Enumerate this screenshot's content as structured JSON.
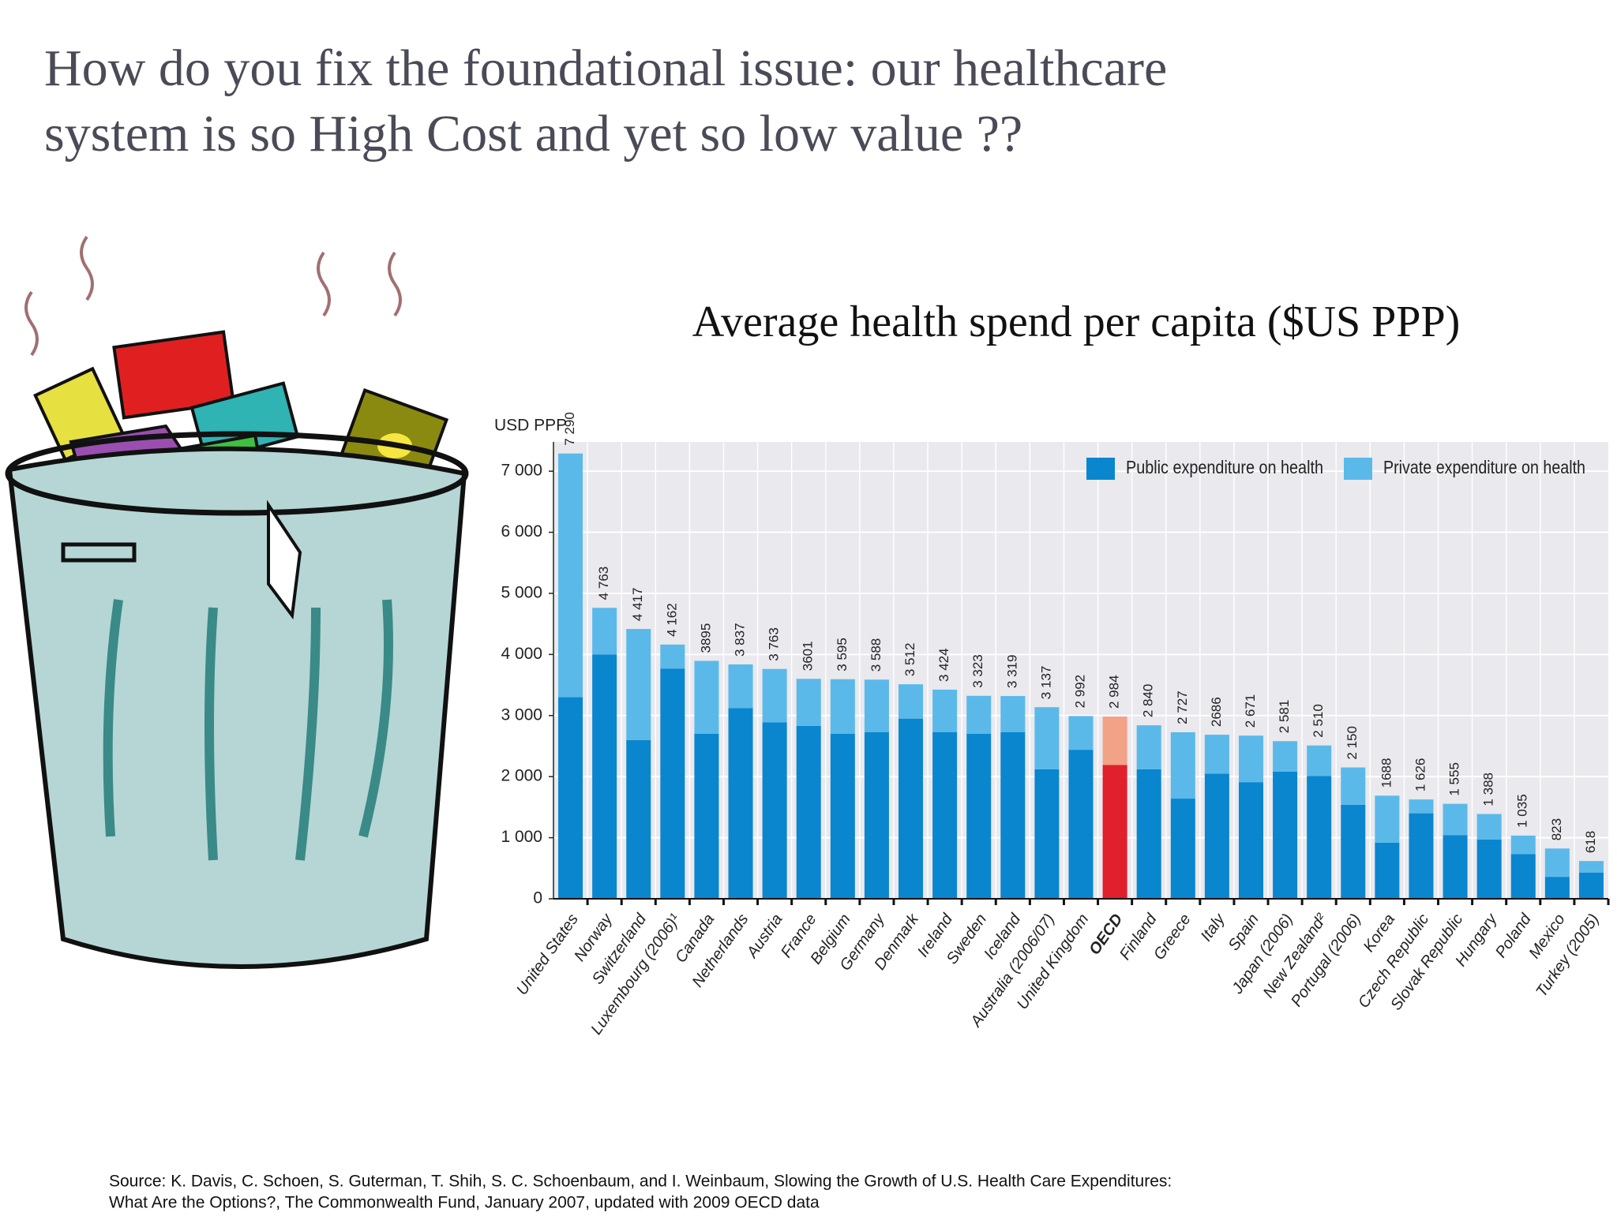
{
  "title_lines": [
    "How do you fix the foundational issue: our healthcare",
    "system is so High Cost and yet so low value ??"
  ],
  "source_lines": [
    "Source: K. Davis, C. Schoen, S. Guterman, T. Shih, S. C. Schoenbaum, and I. Weinbaum, Slowing the Growth of U.S. Health Care Expenditures:",
    "What Are the Options?, The Commonwealth Fund, January 2007, updated with 2009 OECD data"
  ],
  "chart_data": {
    "type": "bar",
    "stacked": true,
    "title": "Average health spend per capita ($US PPP)",
    "y_axis_label": "USD PPP",
    "categories": [
      "United States",
      "Norway",
      "Switzerland",
      "Luxembourg (2006)¹",
      "Canada",
      "Netherlands",
      "Austria",
      "France",
      "Belgium",
      "Germany",
      "Denmark",
      "Ireland",
      "Sweden",
      "Iceland",
      "Australia (2006/07)",
      "United Kingdom",
      "OECD",
      "Finland",
      "Greece",
      "Italy",
      "Spain",
      "Japan (2006)",
      "New Zealand²",
      "Portugal (2006)",
      "Korea",
      "Czech Republic",
      "Slovak Republic",
      "Hungary",
      "Poland",
      "Mexico",
      "Turkey (2005)"
    ],
    "series": [
      {
        "name": "Public expenditure on health",
        "color": "#0a86cf",
        "values": [
          3300,
          4000,
          2600,
          3770,
          2700,
          3120,
          2890,
          2830,
          2700,
          2730,
          2950,
          2730,
          2700,
          2730,
          2120,
          2440,
          2190,
          2120,
          1640,
          2050,
          1910,
          2080,
          2010,
          1540,
          920,
          1400,
          1040,
          970,
          730,
          360,
          430
        ]
      },
      {
        "name": "Private expenditure on health",
        "color": "#5bb9e9",
        "values": [
          3990,
          763,
          1817,
          392,
          1195,
          717,
          873,
          771,
          895,
          858,
          562,
          694,
          623,
          589,
          1017,
          552,
          794,
          720,
          1087,
          636,
          761,
          501,
          500,
          610,
          768,
          226,
          515,
          418,
          305,
          463,
          188
        ]
      }
    ],
    "totals": [
      7290,
      4763,
      4417,
      4162,
      3895,
      3837,
      3763,
      3601,
      3595,
      3588,
      3512,
      3424,
      3323,
      3319,
      3137,
      2992,
      2984,
      2840,
      2727,
      2686,
      2671,
      2581,
      2510,
      2150,
      1688,
      1626,
      1555,
      1388,
      1035,
      823,
      618
    ],
    "total_labels": [
      "7 290",
      "4 763",
      "4 417",
      "4 162",
      "3895",
      "3 837",
      "3 763",
      "3601",
      "3 595",
      "3 588",
      "3 512",
      "3 424",
      "3 323",
      "3 319",
      "3 137",
      "2 992",
      "2 984",
      "2 840",
      "2 727",
      "2686",
      "2 671",
      "2 581",
      "2 510",
      "2 150",
      "1688",
      "1 626",
      "1 555",
      "1 388",
      "1 035",
      "823",
      "618"
    ],
    "highlight": {
      "category": "OECD",
      "colors": [
        "#e0202c",
        "#f2a286"
      ]
    },
    "ylim": [
      0,
      7480
    ],
    "yticks": [
      0,
      {
        "value": 1000,
        "label": "1 000"
      },
      {
        "value": 2000,
        "label": "2 000"
      },
      {
        "value": 3000,
        "label": "3 000"
      },
      {
        "value": 4000,
        "label": "4 000"
      },
      {
        "value": 5000,
        "label": "5 000"
      },
      {
        "value": 6000,
        "label": "6 000"
      },
      {
        "value": 7000,
        "label": "7 000"
      }
    ],
    "grid": true,
    "legend": "top-right"
  }
}
